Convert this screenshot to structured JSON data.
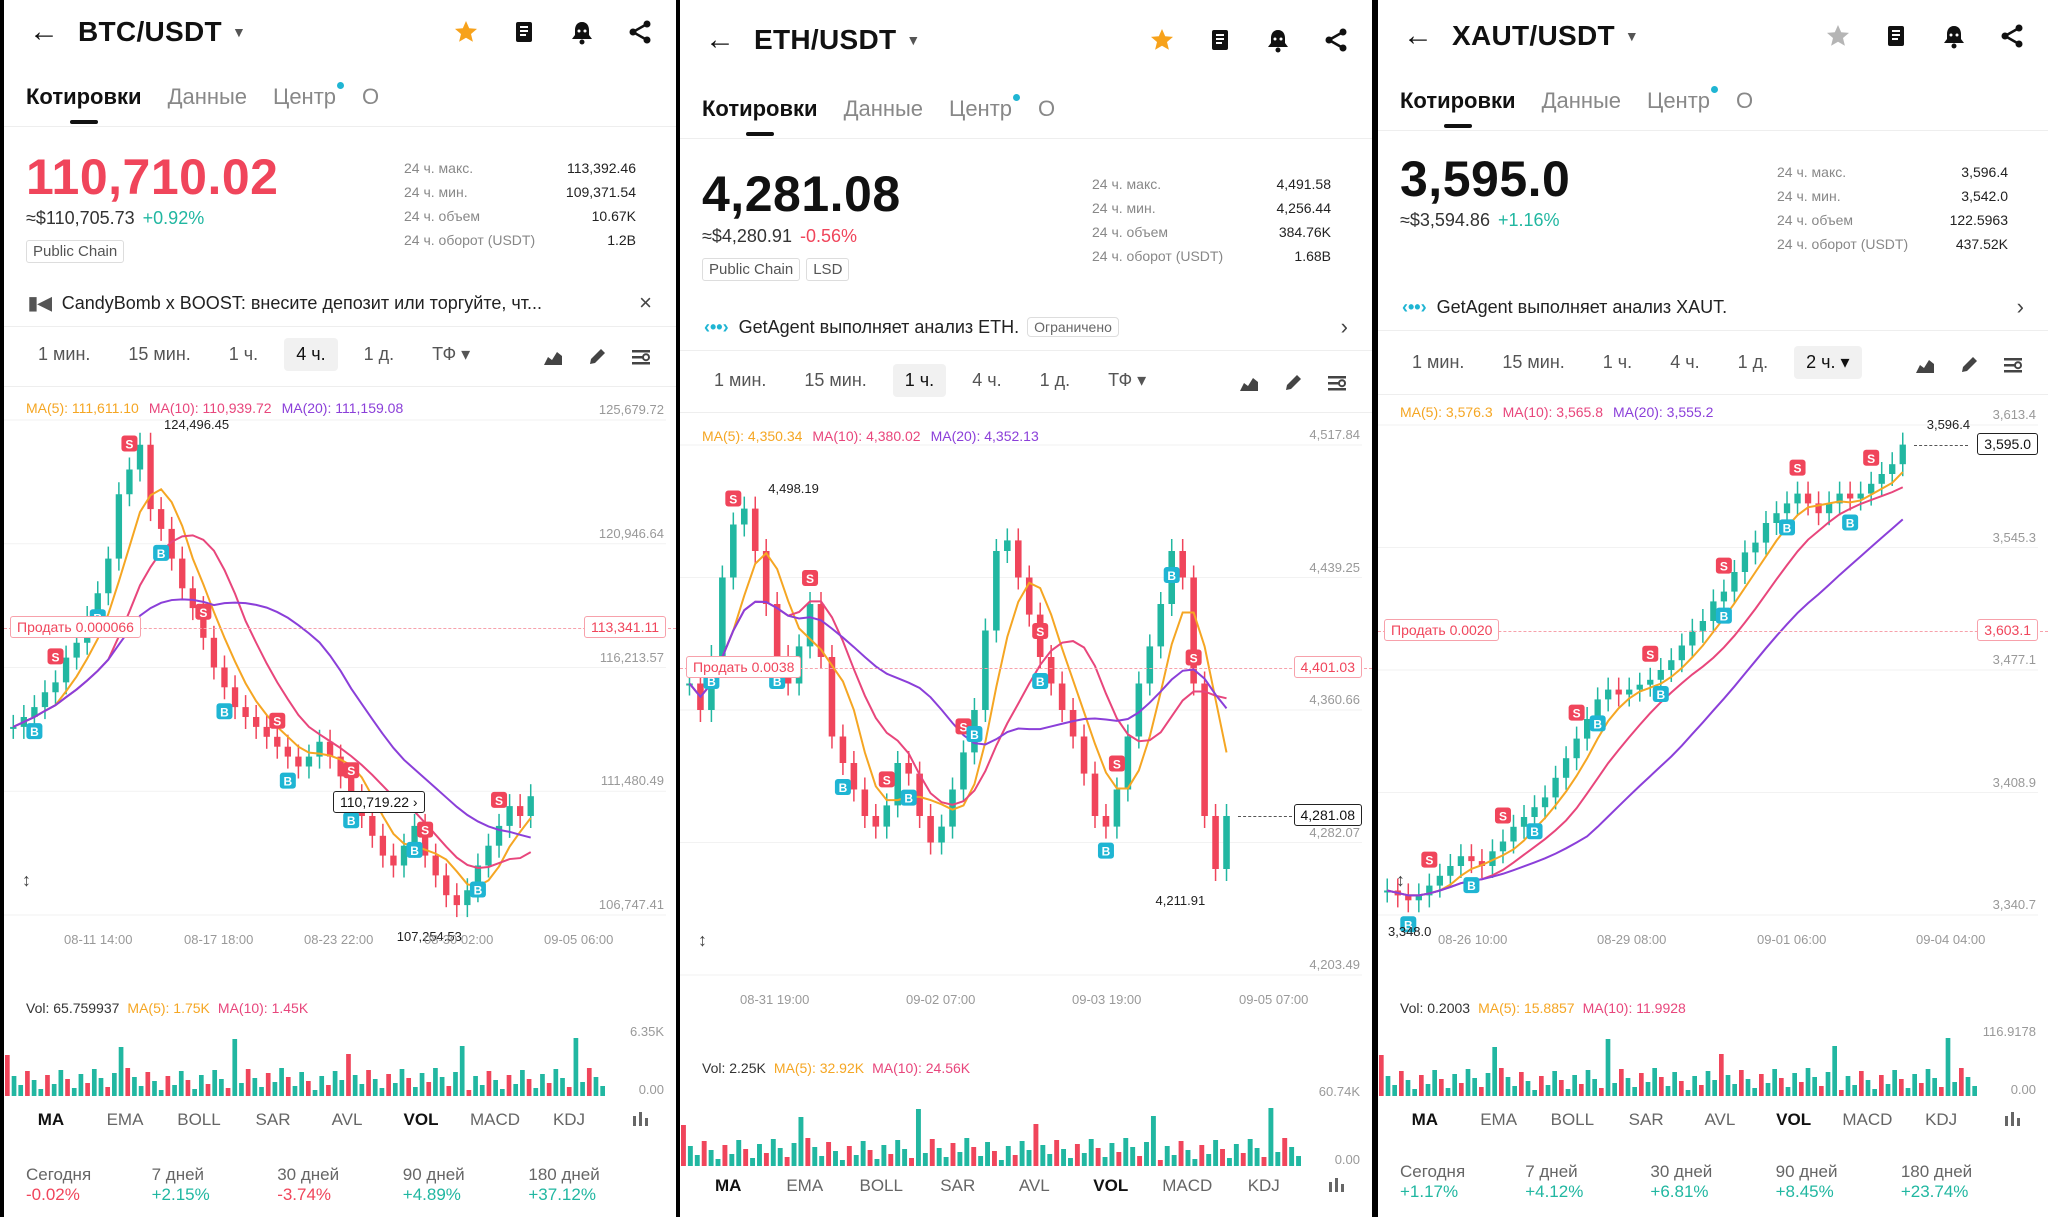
{
  "panels": [
    {
      "pair": "BTC/USDT",
      "starred": true,
      "tabs": [
        "Котировки",
        "Данные",
        "Центр",
        "О"
      ],
      "price": "110,710.02",
      "price_color": "#f0455b",
      "usd": "≈$110,705.73",
      "change": "+0.92%",
      "change_dir": "up",
      "tags": [
        "Public Chain"
      ],
      "stats": [
        {
          "label": "24 ч. макс.",
          "value": "113,392.46"
        },
        {
          "label": "24 ч. мин.",
          "value": "109,371.54"
        },
        {
          "label": "24 ч. объем",
          "value": "10.67K"
        },
        {
          "label": "24 ч. оборот (USDT)",
          "value": "1.2B"
        }
      ],
      "banner": {
        "text": "CandyBomb x BOOST: внесите депозит или торгуйте, чт...",
        "pill": "",
        "end": "×",
        "icon": "megaphone-icon"
      },
      "timeframes": [
        "1 мин.",
        "15 мин.",
        "1 ч.",
        "4 ч.",
        "1 д.",
        "ТФ ▾"
      ],
      "timeframe_selected": 3,
      "ma": {
        "ma5": "MA(5): 111,611.10",
        "ma10": "MA(10): 110,939.72",
        "ma20": "MA(20): 111,159.08"
      },
      "y_ticks": [
        "125,679.72",
        "120,946.64",
        "116,213.57",
        "111,480.49",
        "106,747.41"
      ],
      "x_ticks": [
        "08-11 14:00",
        "08-17 18:00",
        "08-23 22:00",
        "08-30 02:00",
        "09-05 06:00"
      ],
      "high_label": "124,496.45",
      "low_label": "107,254.53",
      "cursor_label": "110,719.22 ›",
      "sell": "Продать  0.000066",
      "sell_price": "113,341.11",
      "current_price": "",
      "vol": {
        "v": "Vol: 65.759937",
        "ma5": "MA(5): 1.75K",
        "ma10": "MA(10): 1.45K",
        "top": "6.35K",
        "bottom": "0.00"
      },
      "indicators": [
        "MA",
        "EMA",
        "BOLL",
        "SAR",
        "AVL",
        "VOL",
        "MACD",
        "KDJ"
      ],
      "perf": [
        {
          "label": "Сегодня",
          "value": "-0.02%",
          "dir": "down"
        },
        {
          "label": "7 дней",
          "value": "+2.15%",
          "dir": "up"
        },
        {
          "label": "30 дней",
          "value": "-3.74%",
          "dir": "down"
        },
        {
          "label": "90 дней",
          "value": "+4.89%",
          "dir": "up"
        },
        {
          "label": "180 дней",
          "value": "+37.12%",
          "dir": "up"
        }
      ],
      "series": [
        0.38,
        0.4,
        0.42,
        0.45,
        0.47,
        0.52,
        0.55,
        0.6,
        0.65,
        0.72,
        0.85,
        0.9,
        0.95,
        0.82,
        0.78,
        0.72,
        0.66,
        0.62,
        0.56,
        0.5,
        0.46,
        0.42,
        0.4,
        0.38,
        0.36,
        0.34,
        0.32,
        0.3,
        0.32,
        0.35,
        0.32,
        0.28,
        0.24,
        0.2,
        0.16,
        0.12,
        0.1,
        0.14,
        0.18,
        0.12,
        0.08,
        0.04,
        0.02,
        0.05,
        0.1,
        0.14,
        0.18,
        0.22,
        0.2,
        0.24
      ]
    },
    {
      "pair": "ETH/USDT",
      "starred": true,
      "tabs": [
        "Котировки",
        "Данные",
        "Центр",
        "О"
      ],
      "price": "4,281.08",
      "price_color": "#111111",
      "usd": "≈$4,280.91",
      "change": "-0.56%",
      "change_dir": "down",
      "tags": [
        "Public Chain",
        "LSD"
      ],
      "stats": [
        {
          "label": "24 ч. макс.",
          "value": "4,491.58"
        },
        {
          "label": "24 ч. мин.",
          "value": "4,256.44"
        },
        {
          "label": "24 ч. объем",
          "value": "384.76K"
        },
        {
          "label": "24 ч. оборот (USDT)",
          "value": "1.68B"
        }
      ],
      "banner": {
        "text": "GetAgent выполняет анализ ETH.",
        "pill": "Ограничено",
        "end": "›",
        "icon": "agent-icon"
      },
      "timeframes": [
        "1 мин.",
        "15 мин.",
        "1 ч.",
        "4 ч.",
        "1 д.",
        "ТФ ▾"
      ],
      "timeframe_selected": 2,
      "ma": {
        "ma5": "MA(5): 4,350.34",
        "ma10": "MA(10): 4,380.02",
        "ma20": "MA(20): 4,352.13"
      },
      "y_ticks": [
        "4,517.84",
        "4,439.25",
        "4,360.66",
        "4,282.07",
        "4,203.49"
      ],
      "x_ticks": [
        "08-31 19:00",
        "09-02 07:00",
        "09-03 19:00",
        "09-05 07:00"
      ],
      "high_label": "4,498.19",
      "low_label": "4,211.91",
      "cursor_label": "",
      "sell": "Продать  0.0038",
      "sell_price": "4,401.03",
      "current_price": "4,281.08",
      "vol": {
        "v": "Vol: 2.25K",
        "ma5": "MA(5): 32.92K",
        "ma10": "MA(10): 24.56K",
        "top": "60.74K",
        "bottom": "0.00"
      },
      "indicators": [
        "MA",
        "EMA",
        "BOLL",
        "SAR",
        "AVL",
        "VOL",
        "MACD",
        "KDJ"
      ],
      "perf": [],
      "series": [
        0.55,
        0.5,
        0.6,
        0.75,
        0.85,
        0.88,
        0.8,
        0.7,
        0.6,
        0.55,
        0.62,
        0.7,
        0.6,
        0.45,
        0.4,
        0.35,
        0.3,
        0.28,
        0.32,
        0.4,
        0.38,
        0.3,
        0.25,
        0.28,
        0.35,
        0.42,
        0.5,
        0.65,
        0.8,
        0.82,
        0.75,
        0.68,
        0.6,
        0.55,
        0.5,
        0.45,
        0.38,
        0.3,
        0.28,
        0.35,
        0.45,
        0.55,
        0.62,
        0.7,
        0.8,
        0.75,
        0.55,
        0.3,
        0.2,
        0.3
      ]
    },
    {
      "pair": "XAUT/USDT",
      "starred": false,
      "tabs": [
        "Котировки",
        "Данные",
        "Центр",
        "О"
      ],
      "price": "3,595.0",
      "price_color": "#111111",
      "usd": "≈$3,594.86",
      "change": "+1.16%",
      "change_dir": "up",
      "tags": [],
      "stats": [
        {
          "label": "24 ч. макс.",
          "value": "3,596.4"
        },
        {
          "label": "24 ч. мин.",
          "value": "3,542.0"
        },
        {
          "label": "24 ч. объем",
          "value": "122.5963"
        },
        {
          "label": "24 ч. оборот (USDT)",
          "value": "437.52K"
        }
      ],
      "banner": {
        "text": "GetAgent выполняет анализ XAUT.",
        "pill": "",
        "end": "›",
        "icon": "agent-icon"
      },
      "timeframes": [
        "1 мин.",
        "15 мин.",
        "1 ч.",
        "4 ч.",
        "1 д.",
        "2 ч. ▾"
      ],
      "timeframe_selected": 5,
      "ma": {
        "ma5": "MA(5): 3,576.3",
        "ma10": "MA(10): 3,565.8",
        "ma20": "MA(20): 3,555.2"
      },
      "y_ticks": [
        "3,613.4",
        "3,545.3",
        "3,477.1",
        "3,408.9",
        "3,340.7"
      ],
      "x_ticks": [
        "08-26 10:00",
        "08-29 08:00",
        "09-01 06:00",
        "09-04 04:00"
      ],
      "high_label": "3,596.4",
      "low_label": "3,348.0",
      "cursor_label": "",
      "sell": "Продать  0.0020",
      "sell_price": "3,603.1",
      "current_price": "3,595.0",
      "vol": {
        "v": "Vol: 0.2003",
        "ma5": "MA(5): 15.8857",
        "ma10": "MA(10): 11.9928",
        "top": "116.9178",
        "bottom": "0.00"
      },
      "indicators": [
        "MA",
        "EMA",
        "BOLL",
        "SAR",
        "AVL",
        "VOL",
        "MACD",
        "KDJ"
      ],
      "perf": [
        {
          "label": "Сегодня",
          "value": "+1.17%",
          "dir": "up"
        },
        {
          "label": "7 дней",
          "value": "+4.12%",
          "dir": "up"
        },
        {
          "label": "30 дней",
          "value": "+6.81%",
          "dir": "up"
        },
        {
          "label": "90 дней",
          "value": "+8.45%",
          "dir": "up"
        },
        {
          "label": "180 дней",
          "value": "+23.74%",
          "dir": "up"
        }
      ],
      "series": [
        0.05,
        0.04,
        0.03,
        0.04,
        0.06,
        0.08,
        0.1,
        0.12,
        0.11,
        0.1,
        0.13,
        0.15,
        0.18,
        0.2,
        0.22,
        0.24,
        0.28,
        0.32,
        0.36,
        0.4,
        0.44,
        0.46,
        0.45,
        0.46,
        0.47,
        0.48,
        0.5,
        0.52,
        0.55,
        0.58,
        0.6,
        0.64,
        0.66,
        0.7,
        0.74,
        0.76,
        0.8,
        0.82,
        0.84,
        0.86,
        0.84,
        0.82,
        0.84,
        0.86,
        0.85,
        0.86,
        0.88,
        0.9,
        0.92,
        0.96
      ]
    }
  ],
  "colors": {
    "up": "#21b7a1",
    "down": "#f0455b",
    "ma5": "#f5a623",
    "ma10": "#e8467c",
    "ma20": "#8b3fd9",
    "star_on": "#f7a21b",
    "star_off": "#b5b5b5"
  }
}
